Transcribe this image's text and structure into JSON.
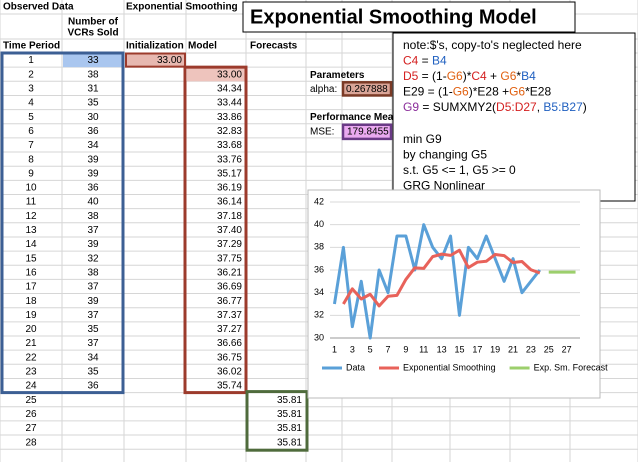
{
  "title": "Exponential Smoothing Model",
  "headers": {
    "observed": "Observed Data",
    "smoothing": "Exponential Smoothing",
    "sold_1": "Number of",
    "sold_2": "VCRs Sold",
    "period": "Time Period",
    "init": "Initialization",
    "model": "Model",
    "forecasts": "Forecasts"
  },
  "rows": [
    {
      "period": 1,
      "sold": 33,
      "init": "33.00"
    },
    {
      "period": 2,
      "sold": 38,
      "model": "33.00"
    },
    {
      "period": 3,
      "sold": 31,
      "model": "34.34"
    },
    {
      "period": 4,
      "sold": 35,
      "model": "33.44"
    },
    {
      "period": 5,
      "sold": 30,
      "model": "33.86"
    },
    {
      "period": 6,
      "sold": 36,
      "model": "32.83"
    },
    {
      "period": 7,
      "sold": 34,
      "model": "33.68"
    },
    {
      "period": 8,
      "sold": 39,
      "model": "33.76"
    },
    {
      "period": 9,
      "sold": 39,
      "model": "35.17"
    },
    {
      "period": 10,
      "sold": 36,
      "model": "36.19"
    },
    {
      "period": 11,
      "sold": 40,
      "model": "36.14"
    },
    {
      "period": 12,
      "sold": 38,
      "model": "37.18"
    },
    {
      "period": 13,
      "sold": 37,
      "model": "37.40"
    },
    {
      "period": 14,
      "sold": 39,
      "model": "37.29"
    },
    {
      "period": 15,
      "sold": 32,
      "model": "37.75"
    },
    {
      "period": 16,
      "sold": 38,
      "model": "36.21"
    },
    {
      "period": 17,
      "sold": 37,
      "model": "36.69"
    },
    {
      "period": 18,
      "sold": 39,
      "model": "36.77"
    },
    {
      "period": 19,
      "sold": 37,
      "model": "37.37"
    },
    {
      "period": 20,
      "sold": 35,
      "model": "37.27"
    },
    {
      "period": 21,
      "sold": 37,
      "model": "36.66"
    },
    {
      "period": 22,
      "sold": 34,
      "model": "36.75"
    },
    {
      "period": 23,
      "sold": 35,
      "model": "36.02"
    },
    {
      "period": 24,
      "sold": 36,
      "model": "35.74"
    },
    {
      "period": 25,
      "forecast": "35.81"
    },
    {
      "period": 26,
      "forecast": "35.81"
    },
    {
      "period": 27,
      "forecast": "35.81"
    },
    {
      "period": 28,
      "forecast": "35.81"
    }
  ],
  "parameters": {
    "heading": "Parameters",
    "alpha_label": "alpha:",
    "alpha": "0.267888",
    "perf_heading": "Performance Mea",
    "mse_label": "MSE:",
    "mse": "179.8455"
  },
  "note": {
    "formulas": [
      [
        {
          "text": "note:$'s, copy-to's neglected here"
        }
      ],
      [
        {
          "text": "C4",
          "color": "#d42020"
        },
        {
          "text": " = "
        },
        {
          "text": "B4",
          "color": "#2060c0"
        }
      ],
      [
        {
          "text": "D5",
          "color": "#d42020"
        },
        {
          "text": " = (1-"
        },
        {
          "text": "G6",
          "color": "#e06010"
        },
        {
          "text": ")*"
        },
        {
          "text": "C4",
          "color": "#d42020"
        },
        {
          "text": " + "
        },
        {
          "text": "G6",
          "color": "#e06010"
        },
        {
          "text": "*"
        },
        {
          "text": "B4",
          "color": "#2060c0"
        }
      ],
      [
        {
          "text": "E29 = (1-"
        },
        {
          "text": "G6",
          "color": "#e06010"
        },
        {
          "text": ")*E28 +"
        },
        {
          "text": "G6",
          "color": "#e06010"
        },
        {
          "text": "*E28"
        }
      ],
      [
        {
          "text": "G9",
          "color": "#8a2d9a"
        },
        {
          "text": " = SUMXMY2("
        },
        {
          "text": "D5:D27",
          "color": "#d42020"
        },
        {
          "text": ", "
        },
        {
          "text": "B5:B27",
          "color": "#2060c0"
        },
        {
          "text": ")"
        }
      ]
    ],
    "solver": [
      "min G9",
      "by changing G5",
      "s.t. G5 <= 1, G5 >= 0",
      "GRG Nonlinear"
    ]
  },
  "chart_data": {
    "type": "line",
    "categories": [
      1,
      null,
      3,
      null,
      5,
      null,
      7,
      null,
      9,
      null,
      11,
      null,
      13,
      null,
      15,
      null,
      17,
      null,
      19,
      null,
      21,
      null,
      23,
      null,
      25,
      null,
      27,
      null
    ],
    "ylim": [
      30,
      42
    ],
    "yticks": [
      30,
      32,
      34,
      36,
      38,
      40,
      42
    ],
    "grid": true,
    "legend": "bottom",
    "series": [
      {
        "name": "Data",
        "color": "#5aa0d8",
        "values": [
          33,
          38,
          31,
          35,
          30,
          36,
          34,
          39,
          39,
          36,
          40,
          38,
          37,
          39,
          32,
          38,
          37,
          39,
          37,
          35,
          37,
          34,
          35,
          36,
          null,
          null,
          null,
          null
        ]
      },
      {
        "name": "Exponential Smoothing",
        "color": "#e8625a",
        "values": [
          null,
          33.0,
          34.34,
          33.44,
          33.86,
          32.83,
          33.68,
          33.76,
          35.17,
          36.19,
          36.14,
          37.18,
          37.4,
          37.29,
          37.75,
          36.21,
          36.69,
          36.77,
          37.37,
          37.27,
          36.66,
          36.75,
          36.02,
          35.74,
          null,
          null,
          null,
          null
        ]
      },
      {
        "name": "Exp. Sm. Forecast",
        "color": "#9ccf6c",
        "values": [
          null,
          null,
          null,
          null,
          null,
          null,
          null,
          null,
          null,
          null,
          null,
          null,
          null,
          null,
          null,
          null,
          null,
          null,
          null,
          null,
          null,
          null,
          null,
          null,
          35.81,
          35.81,
          35.81,
          35.81
        ]
      }
    ]
  }
}
